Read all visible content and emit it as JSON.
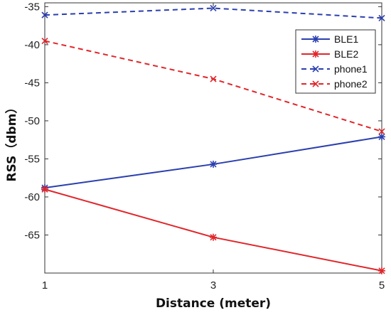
{
  "chart_data": {
    "type": "line",
    "xlabel": "Distance   (meter)",
    "ylabel": "RSS（dbm）",
    "x": [
      1,
      3,
      5
    ],
    "xticks": [
      "1",
      "3",
      "5"
    ],
    "yticks": [
      "-35",
      "-40",
      "-45",
      "-50",
      "-55",
      "-60",
      "-65"
    ],
    "ylim": [
      -70,
      -34.5
    ],
    "xlim": [
      1,
      5
    ],
    "grid": false,
    "legend_position": "top-right",
    "series": [
      {
        "name": "BLE1",
        "values": [
          -58.8,
          -55.7,
          -52.1
        ],
        "color": "#2b3fae",
        "style": "solid",
        "marker": "star"
      },
      {
        "name": "BLE2",
        "values": [
          -59.0,
          -65.3,
          -69.7
        ],
        "color": "#e0262a",
        "style": "solid",
        "marker": "star"
      },
      {
        "name": "phone1",
        "values": [
          -36.1,
          -35.2,
          -36.5
        ],
        "color": "#2b3fae",
        "style": "dashed",
        "marker": "x"
      },
      {
        "name": "phone2",
        "values": [
          -39.5,
          -44.5,
          -51.4
        ],
        "color": "#e0262a",
        "style": "dashed",
        "marker": "x"
      }
    ]
  }
}
